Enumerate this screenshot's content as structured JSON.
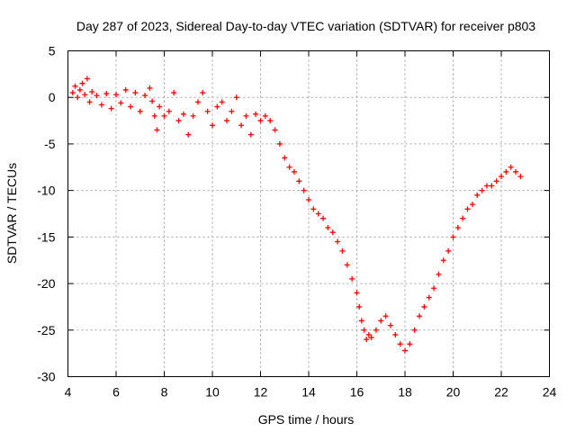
{
  "chart_data": {
    "type": "scatter",
    "title": "Day 287 of 2023, Sidereal Day-to-day VTEC variation (SDTVAR) for receiver p803",
    "xlabel": "GPS time / hours",
    "ylabel": "SDTVAR / TECUs",
    "xlim": [
      4,
      24
    ],
    "ylim": [
      -30,
      5
    ],
    "xticks": [
      4,
      6,
      8,
      10,
      12,
      14,
      16,
      18,
      20,
      22,
      24
    ],
    "yticks": [
      5,
      0,
      -5,
      -10,
      -15,
      -20,
      -25,
      -30
    ],
    "grid": true,
    "marker": "+",
    "color": "#ff0000",
    "series": [
      {
        "name": "SDTVAR",
        "x": [
          4.2,
          4.3,
          4.4,
          4.5,
          4.6,
          4.7,
          4.8,
          4.9,
          5.0,
          5.2,
          5.4,
          5.6,
          5.8,
          6.0,
          6.2,
          6.4,
          6.6,
          6.8,
          7.0,
          7.2,
          7.4,
          7.5,
          7.6,
          7.7,
          7.8,
          8.0,
          8.2,
          8.4,
          8.6,
          8.8,
          9.0,
          9.2,
          9.4,
          9.6,
          9.8,
          10.0,
          10.2,
          10.4,
          10.6,
          10.8,
          11.0,
          11.2,
          11.4,
          11.6,
          11.8,
          12.0,
          12.2,
          12.4,
          12.6,
          12.8,
          13.0,
          13.2,
          13.4,
          13.6,
          13.8,
          14.0,
          14.2,
          14.4,
          14.6,
          14.8,
          15.0,
          15.2,
          15.4,
          15.6,
          15.8,
          16.0,
          16.1,
          16.2,
          16.3,
          16.4,
          16.5,
          16.6,
          16.8,
          17.0,
          17.2,
          17.4,
          17.6,
          17.8,
          18.0,
          18.2,
          18.4,
          18.6,
          18.8,
          19.0,
          19.2,
          19.4,
          19.6,
          19.8,
          20.0,
          20.2,
          20.4,
          20.6,
          20.8,
          21.0,
          21.2,
          21.4,
          21.6,
          21.8,
          22.0,
          22.2,
          22.4,
          22.6,
          22.8
        ],
        "y": [
          0.5,
          1.2,
          0.0,
          0.8,
          1.5,
          0.3,
          2.0,
          -0.5,
          0.6,
          0.2,
          -0.8,
          0.4,
          -1.2,
          0.3,
          -0.6,
          0.8,
          -1.0,
          0.5,
          -1.5,
          0.2,
          1.0,
          -0.4,
          -2.0,
          -3.5,
          -1.0,
          -2.0,
          -1.5,
          0.5,
          -2.5,
          -1.8,
          -4.0,
          -2.0,
          -0.5,
          0.5,
          -1.5,
          -3.0,
          -1.0,
          -0.5,
          -2.5,
          -1.5,
          0.0,
          -3.0,
          -2.0,
          -4.0,
          -1.8,
          -2.5,
          -2.0,
          -2.5,
          -3.5,
          -5.0,
          -6.5,
          -7.5,
          -8.0,
          -9.0,
          -10.0,
          -11.0,
          -12.0,
          -12.5,
          -13.0,
          -14.0,
          -14.5,
          -15.5,
          -16.5,
          -18.0,
          -19.5,
          -21.0,
          -22.5,
          -24.0,
          -25.0,
          -26.0,
          -25.5,
          -25.8,
          -25.0,
          -24.0,
          -23.5,
          -24.5,
          -25.5,
          -26.5,
          -27.2,
          -26.5,
          -25.0,
          -23.5,
          -22.5,
          -21.5,
          -20.5,
          -19.0,
          -17.5,
          -16.5,
          -15.0,
          -14.0,
          -13.0,
          -12.0,
          -11.5,
          -10.5,
          -10.0,
          -9.5,
          -9.5,
          -9.0,
          -8.5,
          -8.0,
          -7.5,
          -8.0,
          -8.5
        ]
      }
    ]
  }
}
